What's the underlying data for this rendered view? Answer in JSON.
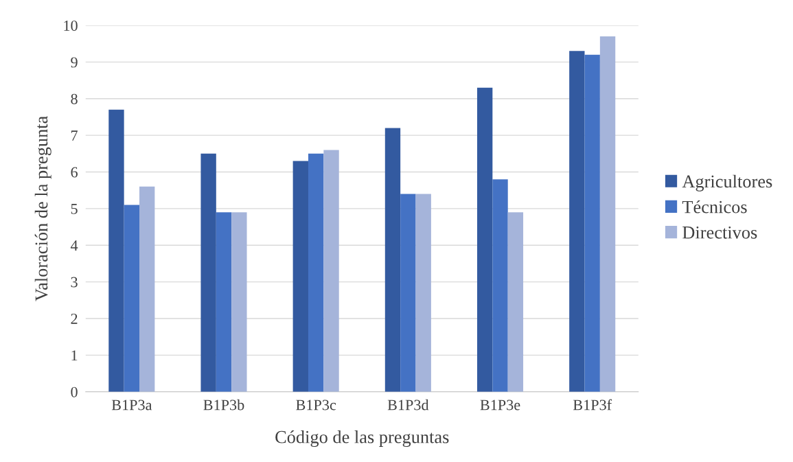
{
  "chart_data": {
    "type": "bar",
    "xlabel": "Código de las preguntas",
    "ylabel": "Valoración de la pregunta",
    "categories": [
      "B1P3a",
      "B1P3b",
      "B1P3c",
      "B1P3d",
      "B1P3e",
      "B1P3f"
    ],
    "series": [
      {
        "name": "Agricultores",
        "color": "#335aa0",
        "values": [
          7.7,
          6.5,
          6.3,
          7.2,
          8.3,
          9.3
        ]
      },
      {
        "name": "Técnicos",
        "color": "#4472c4",
        "values": [
          5.1,
          4.9,
          6.5,
          5.4,
          5.8,
          9.2
        ]
      },
      {
        "name": "Directivos",
        "color": "#a5b4da",
        "values": [
          5.6,
          4.9,
          6.6,
          5.4,
          4.9,
          9.7
        ]
      }
    ],
    "ylim": [
      0,
      10
    ],
    "yticks": [
      0,
      1,
      2,
      3,
      4,
      5,
      6,
      7,
      8,
      9,
      10
    ],
    "grid": "y",
    "legend": "right"
  }
}
